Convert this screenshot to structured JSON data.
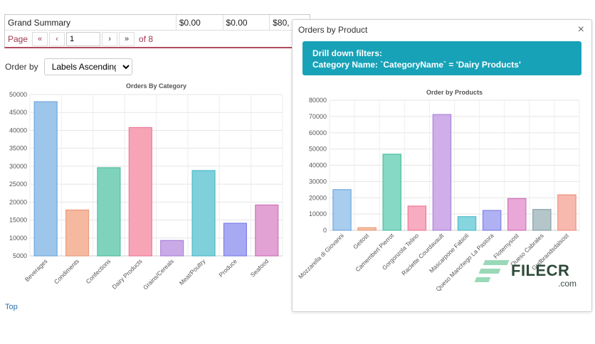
{
  "summary": {
    "row_label": "Grand Summary",
    "values": [
      "$0.00",
      "$0.00",
      "$80,"
    ]
  },
  "pager": {
    "label": "Page",
    "first": "«",
    "prev": "‹",
    "page_value": "1",
    "next": "›",
    "last": "»",
    "of_text": "of 8"
  },
  "order_by": {
    "label": "Order by",
    "selected": "Labels Ascending"
  },
  "top_link": "Top",
  "modal": {
    "title": "Orders by Product",
    "close": "×",
    "drill_title": "Drill down filters:",
    "drill_filter": "Category Name: `CategoryName` = 'Dairy Products'"
  },
  "watermark": {
    "text": "FILECR",
    "sub": ".com"
  },
  "chart_data": [
    {
      "type": "bar",
      "title": "Orders By Category",
      "categories": [
        "Beverages",
        "Condiments",
        "Confections",
        "Dairy Products",
        "Grains/Cereals",
        "Meat/Poultry",
        "Produce",
        "Seafood"
      ],
      "values": [
        48000,
        17800,
        29600,
        40800,
        9300,
        28800,
        14100,
        19200
      ],
      "ylim": [
        5000,
        50000
      ],
      "yticks": [
        5000,
        10000,
        15000,
        20000,
        25000,
        30000,
        35000,
        40000,
        45000,
        50000
      ],
      "colors": [
        "#9ec5ea",
        "#f5b9a0",
        "#7fd3bd",
        "#f7a4b7",
        "#c9a9e6",
        "#7fd0da",
        "#a7a9f2",
        "#e2a2d3"
      ],
      "borders": [
        "#6fa8dc",
        "#ea9c7c",
        "#4fbfa0",
        "#ee7a97",
        "#aa85da",
        "#4fbccb",
        "#7f81ea",
        "#cf72b9"
      ],
      "grid": true
    },
    {
      "type": "bar",
      "title": "Order by Products",
      "categories": [
        "Mozzarella di Giovanni",
        "Geitost",
        "Camembert Pierrot",
        "Gorgonzola Telino",
        "Raclette Courdavault",
        "Mascarpone Fabioli",
        "Queso Manchego La Pastora",
        "Flotemysost",
        "Queso Cabrales",
        "Gudbrandsdalsost"
      ],
      "values": [
        25000,
        1600,
        46800,
        14900,
        71200,
        8400,
        12200,
        19500,
        12800,
        21800
      ],
      "ylim": [
        0,
        80000
      ],
      "yticks": [
        0,
        10000,
        20000,
        30000,
        40000,
        50000,
        60000,
        70000,
        80000
      ],
      "colors": [
        "#a9cdef",
        "#f5c1a7",
        "#86d9c4",
        "#f7acbf",
        "#cfaee9",
        "#86d5df",
        "#b0b1f3",
        "#e9a8d8",
        "#b4c6ca",
        "#f7b9ad"
      ],
      "borders": [
        "#6fa8dc",
        "#ea9c7c",
        "#4fbfa0",
        "#ee7a97",
        "#aa85da",
        "#4fbccb",
        "#7f81ea",
        "#cf72b9",
        "#86a2a8",
        "#ee8f80"
      ],
      "grid": true
    }
  ]
}
